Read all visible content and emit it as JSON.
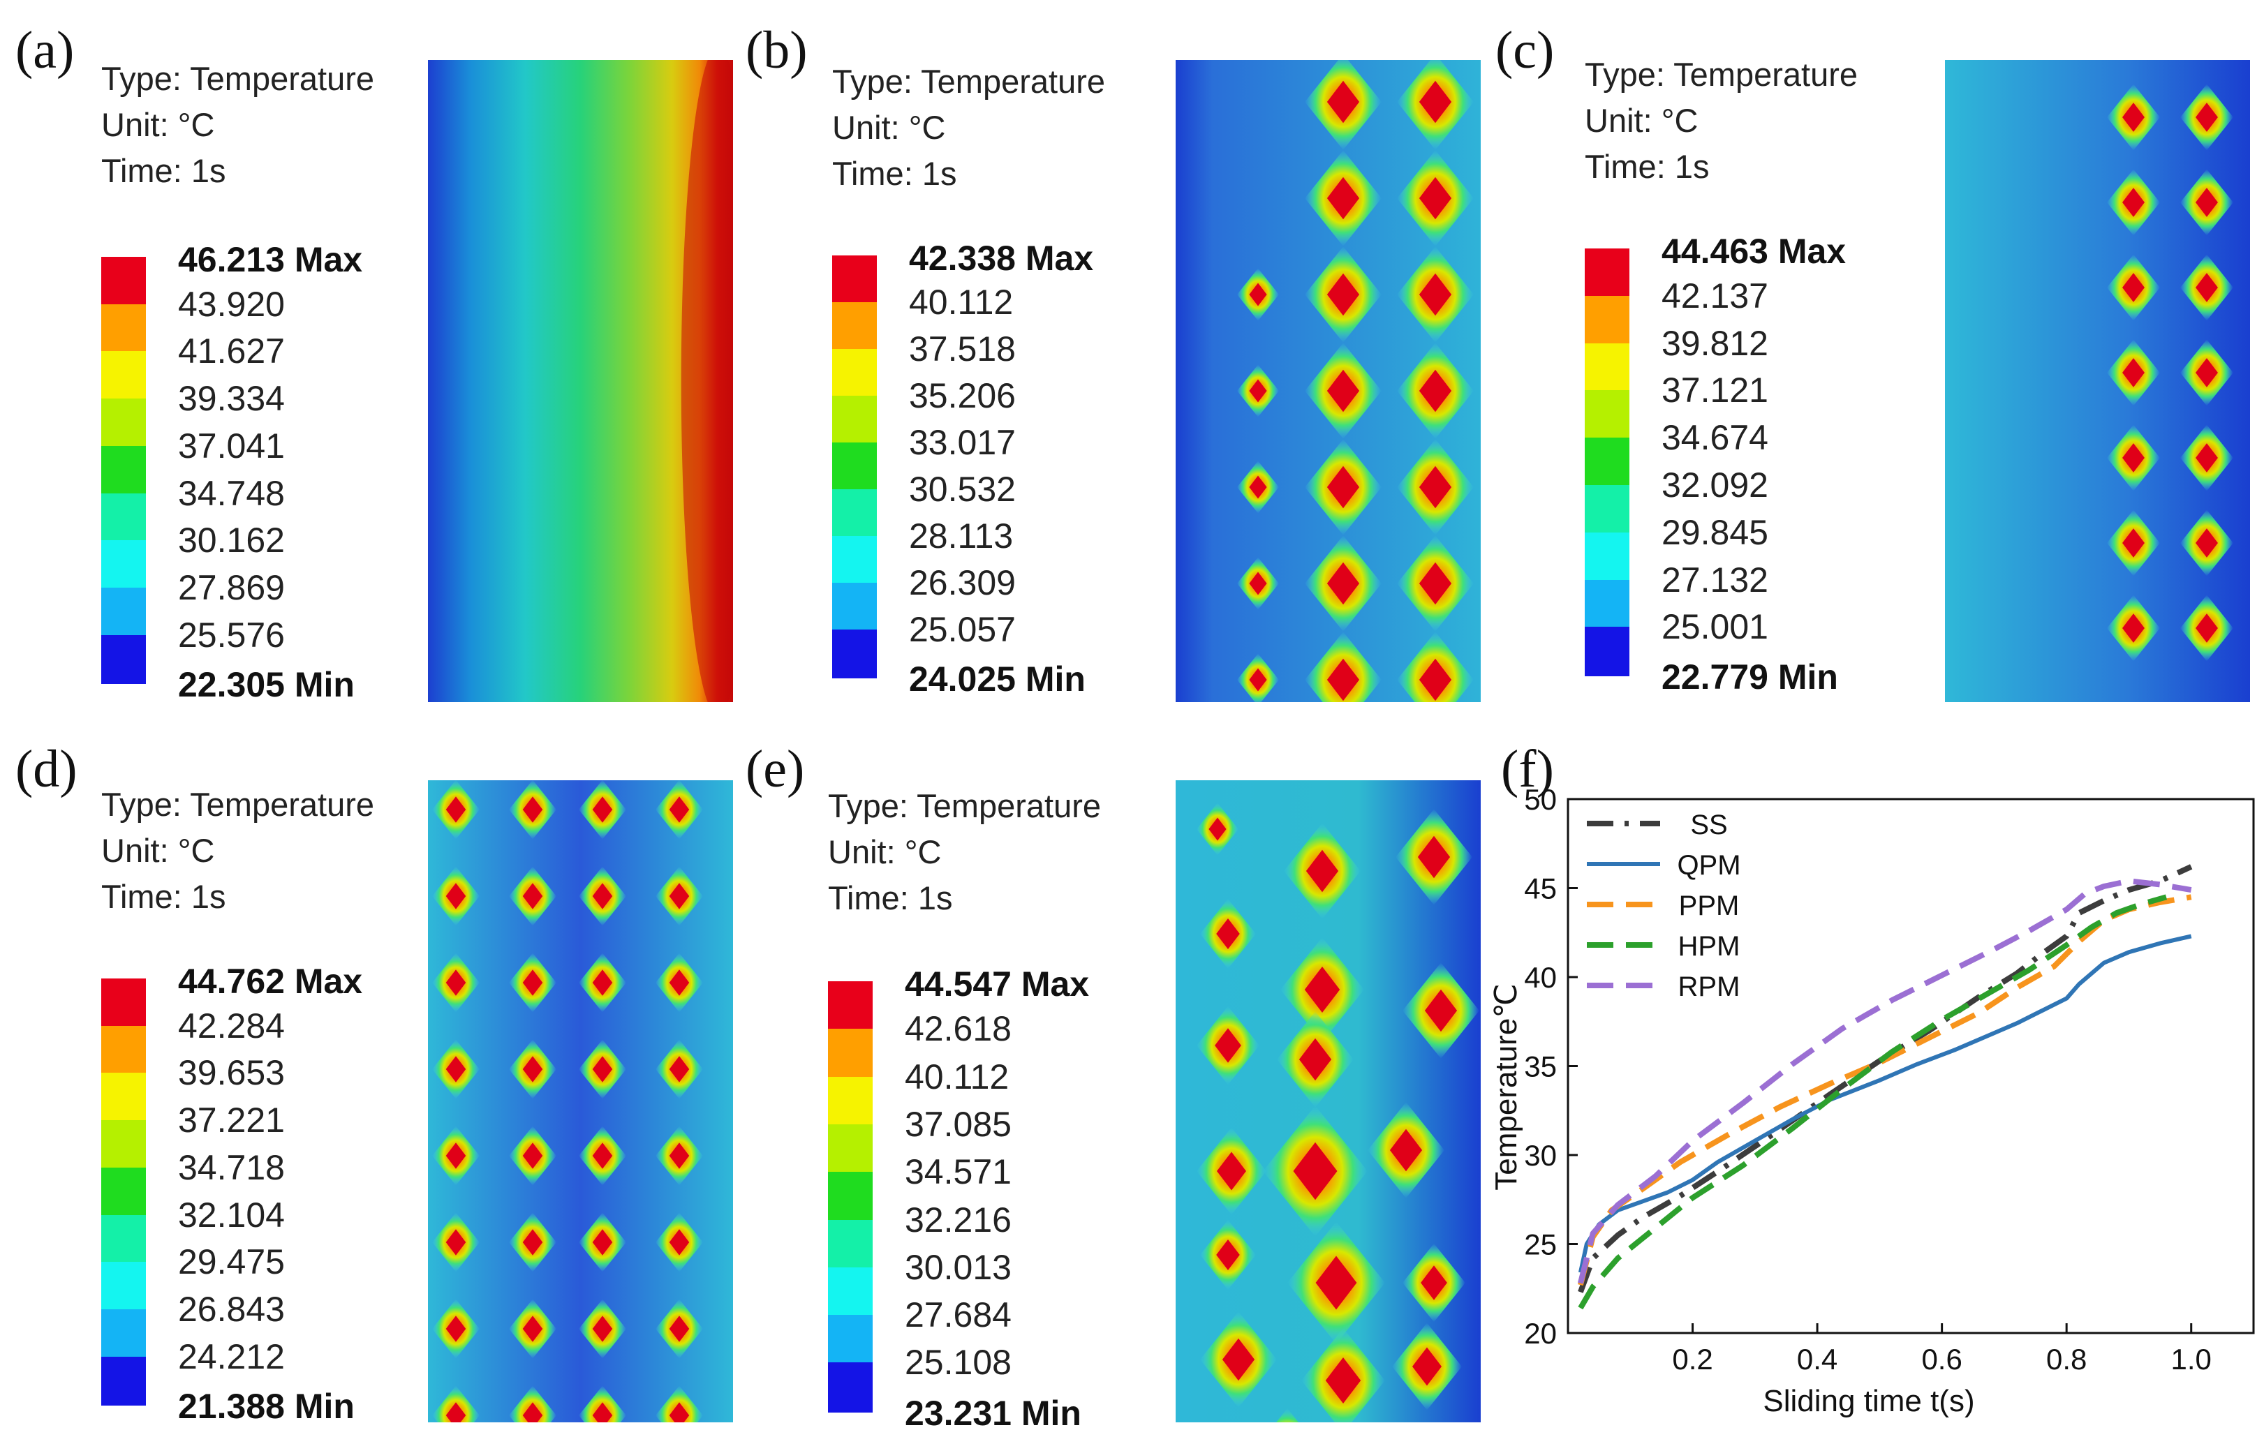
{
  "panels": [
    {
      "label": "(a)",
      "type_text": "Type: Temperature",
      "unit_text": "Unit: °C",
      "time_text": "Time: 1s",
      "legend": [
        "46.213 Max",
        "43.920",
        "41.627",
        "39.334",
        "37.041",
        "34.748",
        "30.162",
        "27.869",
        "25.576",
        "22.305 Min"
      ]
    },
    {
      "label": "(b)",
      "type_text": "Type: Temperature",
      "unit_text": "Unit: °C",
      "time_text": "Time: 1s",
      "legend": [
        "42.338 Max",
        "40.112",
        "37.518",
        "35.206",
        "33.017",
        "30.532",
        "28.113",
        "26.309",
        "25.057",
        "24.025 Min"
      ]
    },
    {
      "label": "(c)",
      "type_text": "Type: Temperature",
      "unit_text": "Unit: °C",
      "time_text": "Time: 1s",
      "legend": [
        "44.463 Max",
        "42.137",
        "39.812",
        "37.121",
        "34.674",
        "32.092",
        "29.845",
        "27.132",
        "25.001",
        "22.779 Min"
      ]
    },
    {
      "label": "(d)",
      "type_text": "Type: Temperature",
      "unit_text": "Unit: °C",
      "time_text": "Time: 1s",
      "legend": [
        "44.762 Max",
        "42.284",
        "39.653",
        "37.221",
        "34.718",
        "32.104",
        "29.475",
        "26.843",
        "24.212",
        "21.388 Min"
      ]
    },
    {
      "label": "(e)",
      "type_text": "Type: Temperature",
      "unit_text": "Unit: °C",
      "time_text": "Time: 1s",
      "legend": [
        "44.547 Max",
        "42.618",
        "40.112",
        "37.085",
        "34.571",
        "32.216",
        "30.013",
        "27.684",
        "25.108",
        "23.231 Min"
      ]
    }
  ],
  "legend_colors": [
    "#e8001a",
    "#ff9f00",
    "#f6f300",
    "#b5f000",
    "#1fdc1f",
    "#14f0a8",
    "#14f5f0",
    "#14b4f5",
    "#1414e6"
  ],
  "chart_label": "(f)",
  "chart_data": {
    "type": "line",
    "title": "",
    "xlabel": "Sliding time t(s)",
    "ylabel": "Temperature℃",
    "xlim": [
      0,
      1.1
    ],
    "ylim": [
      20,
      50
    ],
    "xticks": [
      "0.2",
      "0.4",
      "0.6",
      "0.8",
      "1.0"
    ],
    "xtick_values": [
      0.2,
      0.4,
      0.6,
      0.8,
      1.0
    ],
    "yticks": [
      "20",
      "25",
      "30",
      "35",
      "40",
      "45",
      "50"
    ],
    "ytick_values": [
      20,
      25,
      30,
      35,
      40,
      45,
      50
    ],
    "legend_position": "top-left",
    "series": [
      {
        "name": "SS",
        "color": "#3c3c3c",
        "dash": "dashdot",
        "x": [
          0.02,
          0.04,
          0.08,
          0.12,
          0.18,
          0.25,
          0.33,
          0.42,
          0.5,
          0.58,
          0.66,
          0.72,
          0.76,
          0.8,
          0.82,
          0.86,
          0.9,
          0.95,
          1.0
        ],
        "y": [
          22.3,
          24.2,
          25.5,
          26.5,
          27.7,
          29.3,
          31.2,
          33.4,
          35.3,
          37.0,
          38.9,
          40.2,
          41.3,
          42.3,
          43.6,
          44.3,
          44.9,
          45.4,
          46.2
        ]
      },
      {
        "name": "QPM",
        "color": "#2f75b5",
        "dash": "solid",
        "x": [
          0.02,
          0.03,
          0.05,
          0.08,
          0.12,
          0.16,
          0.2,
          0.24,
          0.3,
          0.36,
          0.42,
          0.5,
          0.56,
          0.62,
          0.68,
          0.72,
          0.76,
          0.8,
          0.82,
          0.86,
          0.9,
          0.95,
          1.0
        ],
        "y": [
          23.4,
          25.0,
          26.1,
          26.9,
          27.4,
          27.9,
          28.6,
          29.6,
          30.8,
          32.0,
          33.1,
          34.2,
          35.1,
          35.9,
          36.8,
          37.4,
          38.1,
          38.8,
          39.6,
          40.8,
          41.4,
          41.9,
          42.3
        ]
      },
      {
        "name": "PPM",
        "color": "#f7941d",
        "dash": "dash",
        "x": [
          0.02,
          0.04,
          0.07,
          0.12,
          0.18,
          0.26,
          0.34,
          0.42,
          0.5,
          0.58,
          0.66,
          0.72,
          0.78,
          0.82,
          0.86,
          0.9,
          0.95,
          1.0
        ],
        "y": [
          22.7,
          25.4,
          26.9,
          28.1,
          29.6,
          31.2,
          32.7,
          34.0,
          35.2,
          36.6,
          38.0,
          39.4,
          40.6,
          42.0,
          43.2,
          43.8,
          44.2,
          44.5
        ]
      },
      {
        "name": "HPM",
        "color": "#2ca02c",
        "dash": "dash",
        "x": [
          0.02,
          0.04,
          0.08,
          0.14,
          0.2,
          0.28,
          0.36,
          0.44,
          0.52,
          0.6,
          0.68,
          0.74,
          0.8,
          0.84,
          0.88,
          0.92,
          0.96
        ],
        "y": [
          21.4,
          22.6,
          24.2,
          25.9,
          27.6,
          29.4,
          31.5,
          33.7,
          35.8,
          37.6,
          39.2,
          40.4,
          41.8,
          42.8,
          43.6,
          44.1,
          44.5
        ]
      },
      {
        "name": "RPM",
        "color": "#9b6fd3",
        "dash": "dash",
        "x": [
          0.02,
          0.04,
          0.08,
          0.14,
          0.2,
          0.28,
          0.36,
          0.44,
          0.52,
          0.6,
          0.68,
          0.74,
          0.8,
          0.83,
          0.86,
          0.9,
          0.95,
          1.0
        ],
        "y": [
          22.8,
          25.6,
          27.2,
          28.8,
          30.8,
          32.9,
          35.1,
          37.1,
          38.7,
          40.1,
          41.5,
          42.6,
          43.8,
          44.7,
          45.1,
          45.4,
          45.2,
          44.9
        ]
      }
    ]
  }
}
